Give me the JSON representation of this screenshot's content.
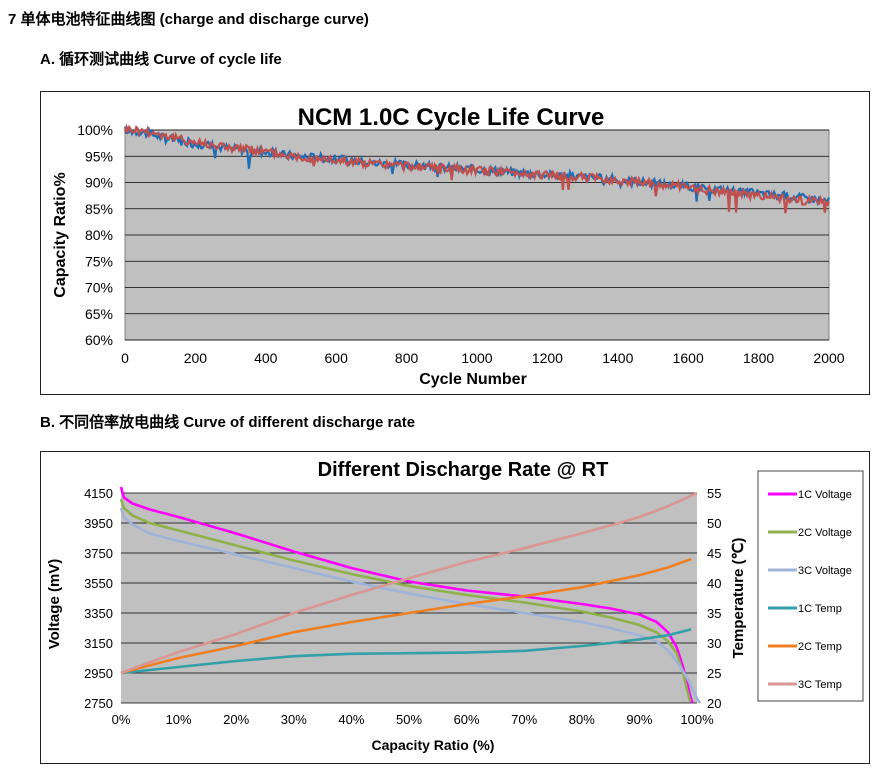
{
  "section": {
    "heading": "7 单体电池特征曲线图 (charge and discharge curve)",
    "subheading_a": "A. 循环测试曲线 Curve of cycle life",
    "subheading_b": "B. 不同倍率放电曲线 Curve of different discharge rate"
  },
  "colors": {
    "plot_bg": "#c0c0c0",
    "cycle_series_1": "#1f6db5",
    "cycle_series_2": "#c0504d",
    "v1c": "#ff00ff",
    "v2c": "#8fb04a",
    "v3c": "#9fb3d8",
    "t1c": "#31a0a8",
    "t2c": "#f07f22",
    "t3c": "#d99694"
  },
  "chart_data": [
    {
      "type": "line",
      "title": "NCM 1.0C Cycle Life Curve",
      "xlabel": "Cycle Number",
      "ylabel": "Capacity Ratio%",
      "xlim": [
        0,
        2000
      ],
      "ylim": [
        60,
        100
      ],
      "x_ticks": [
        "0",
        "200",
        "400",
        "600",
        "800",
        "1000",
        "1200",
        "1400",
        "1600",
        "1800",
        "2000"
      ],
      "y_ticks": [
        "60%",
        "65%",
        "70%",
        "75%",
        "80%",
        "85%",
        "90%",
        "95%",
        "100%"
      ],
      "grid": true,
      "legend": "none",
      "series": [
        {
          "x": [
            0,
            50,
            100,
            150,
            200,
            250,
            300,
            350,
            400,
            450,
            500,
            550,
            600,
            650,
            700,
            750,
            800,
            850,
            900,
            950,
            1000,
            1050,
            1100,
            1150,
            1200,
            1250,
            1300,
            1350,
            1400,
            1450,
            1500,
            1550,
            1600,
            1650,
            1700,
            1750,
            1800,
            1850,
            1900,
            1950,
            2000
          ],
          "values": [
            100,
            99.6,
            98.8,
            98.0,
            97.4,
            97.0,
            96.5,
            96.2,
            95.8,
            95.3,
            95.0,
            94.8,
            94.5,
            94.1,
            93.8,
            93.6,
            93.4,
            93.1,
            92.9,
            92.7,
            92.5,
            92.3,
            92.0,
            91.8,
            91.5,
            91.3,
            91.1,
            90.8,
            90.5,
            90.2,
            89.9,
            89.6,
            89.2,
            88.9,
            88.6,
            88.2,
            87.9,
            87.6,
            87.3,
            86.9,
            86.5
          ]
        },
        {
          "x": [
            0,
            50,
            100,
            150,
            200,
            250,
            300,
            350,
            400,
            450,
            500,
            550,
            600,
            650,
            700,
            750,
            800,
            850,
            900,
            950,
            1000,
            1050,
            1100,
            1150,
            1200,
            1250,
            1300,
            1350,
            1400,
            1450,
            1500,
            1550,
            1600,
            1650,
            1700,
            1750,
            1800,
            1850,
            1900,
            1950,
            2000
          ],
          "values": [
            100.2,
            99.9,
            99.2,
            98.3,
            97.7,
            97.2,
            96.7,
            96.3,
            95.9,
            95.3,
            94.9,
            94.6,
            94.3,
            93.9,
            93.6,
            93.4,
            93.2,
            92.9,
            92.7,
            92.5,
            92.3,
            92.1,
            91.9,
            91.7,
            91.4,
            91.2,
            91.0,
            90.7,
            90.4,
            90.1,
            89.8,
            89.4,
            89.0,
            88.6,
            88.3,
            87.9,
            87.5,
            87.2,
            86.8,
            86.4,
            86.0
          ]
        }
      ]
    },
    {
      "type": "line",
      "title": "Different Discharge Rate @ RT",
      "xlabel": "Capacity Ratio (%)",
      "ylabel": "Voltage (mV)",
      "y2label": "Temperature (℃)",
      "xlim": [
        0,
        100
      ],
      "ylim": [
        2750,
        4150
      ],
      "y2lim": [
        20,
        55
      ],
      "x_ticks": [
        "0%",
        "10%",
        "20%",
        "30%",
        "40%",
        "50%",
        "60%",
        "70%",
        "80%",
        "90%",
        "100%"
      ],
      "y_ticks": [
        "2750",
        "2950",
        "3150",
        "3350",
        "3550",
        "3750",
        "3950",
        "4150"
      ],
      "y2_ticks": [
        "20",
        "25",
        "30",
        "35",
        "40",
        "45",
        "50",
        "55"
      ],
      "grid": true,
      "legend": "right",
      "series": [
        {
          "name": "1C Voltage",
          "axis": "left",
          "x": [
            0,
            0.5,
            2,
            5,
            10,
            20,
            30,
            40,
            50,
            60,
            70,
            80,
            85,
            90,
            93,
            95,
            96.5,
            97.5,
            98.2,
            98.8,
            99.2
          ],
          "values": [
            4190,
            4120,
            4080,
            4040,
            3990,
            3880,
            3760,
            3650,
            3560,
            3500,
            3460,
            3410,
            3380,
            3340,
            3290,
            3220,
            3120,
            3000,
            2900,
            2800,
            2750
          ]
        },
        {
          "name": "2C Voltage",
          "axis": "left",
          "x": [
            0,
            0.5,
            2,
            5,
            10,
            20,
            30,
            40,
            50,
            60,
            70,
            80,
            85,
            90,
            93,
            95,
            96.5,
            97.5,
            98.2,
            98.8
          ],
          "values": [
            4110,
            4050,
            4000,
            3950,
            3900,
            3800,
            3700,
            3610,
            3530,
            3470,
            3420,
            3360,
            3320,
            3270,
            3220,
            3160,
            3080,
            2960,
            2850,
            2760
          ]
        },
        {
          "name": "3C Voltage",
          "axis": "left",
          "x": [
            0,
            0.5,
            2,
            5,
            10,
            20,
            30,
            40,
            50,
            60,
            70,
            80,
            85,
            90,
            93,
            95,
            97,
            98.5,
            99.5,
            100,
            100.5
          ],
          "values": [
            4050,
            3990,
            3940,
            3880,
            3830,
            3740,
            3650,
            3560,
            3480,
            3410,
            3350,
            3290,
            3250,
            3200,
            3160,
            3100,
            3000,
            2900,
            2820,
            2780,
            2750
          ]
        },
        {
          "name": "1C Temp",
          "axis": "right",
          "x": [
            0,
            5,
            10,
            20,
            30,
            40,
            50,
            60,
            70,
            80,
            85,
            90,
            95,
            99
          ],
          "values": [
            25,
            25.5,
            26,
            27,
            27.8,
            28.2,
            28.3,
            28.4,
            28.7,
            29.5,
            30,
            30.6,
            31.3,
            32.3
          ]
        },
        {
          "name": "2C Temp",
          "axis": "right",
          "x": [
            0,
            5,
            10,
            20,
            30,
            40,
            50,
            60,
            70,
            80,
            85,
            90,
            95,
            99
          ],
          "values": [
            25,
            26.3,
            27.5,
            29.5,
            31.8,
            33.5,
            35.0,
            36.5,
            37.8,
            39.3,
            40.3,
            41.3,
            42.6,
            44.0
          ]
        },
        {
          "name": "3C Temp",
          "axis": "right",
          "x": [
            0,
            5,
            10,
            20,
            30,
            40,
            50,
            60,
            70,
            80,
            85,
            90,
            95,
            100
          ],
          "values": [
            25,
            26.8,
            28.5,
            31.5,
            35.0,
            38.0,
            40.8,
            43.5,
            45.8,
            48.3,
            49.6,
            51.0,
            52.8,
            55.0
          ]
        }
      ]
    }
  ]
}
